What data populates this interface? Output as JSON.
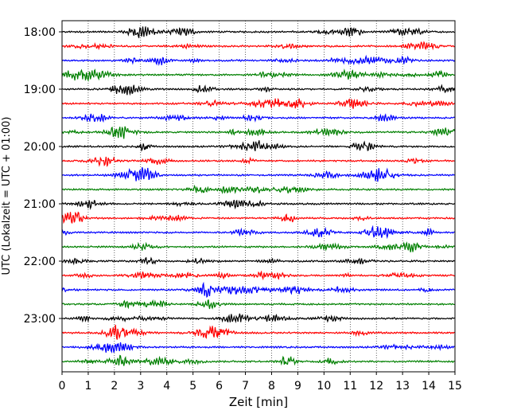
{
  "chart_data": {
    "type": "line",
    "subtype": "helicorder",
    "xlabel": "Zeit  [min]",
    "ylabel": "UTC (Lokalzeit = UTC + 01:00)",
    "xlim": [
      0,
      15
    ],
    "x_ticks": [
      0,
      1,
      2,
      3,
      4,
      5,
      6,
      7,
      8,
      9,
      10,
      11,
      12,
      13,
      14,
      15
    ],
    "y_tick_labels": [
      "18:00",
      "19:00",
      "20:00",
      "21:00",
      "22:00",
      "23:00"
    ],
    "trace_start_times": [
      "18:00",
      "18:15",
      "18:30",
      "18:45",
      "19:00",
      "19:15",
      "19:30",
      "19:45",
      "20:00",
      "20:15",
      "20:30",
      "20:45",
      "21:00",
      "21:15",
      "21:30",
      "21:45",
      "22:00",
      "22:15",
      "22:30",
      "22:45",
      "23:00",
      "23:15",
      "23:30",
      "23:45"
    ],
    "trace_colors": [
      "#000000",
      "#ff0000",
      "#0000ff",
      "#008000"
    ],
    "grid": "vertical dotted",
    "legend": "none"
  }
}
